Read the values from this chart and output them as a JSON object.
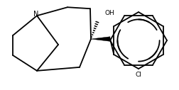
{
  "bg_color": "#ffffff",
  "line_color": "#000000",
  "lw": 1.3,
  "figsize": [
    2.53,
    1.27
  ],
  "dpi": 100,
  "xlim": [
    0,
    10
  ],
  "ylim": [
    0,
    5
  ]
}
